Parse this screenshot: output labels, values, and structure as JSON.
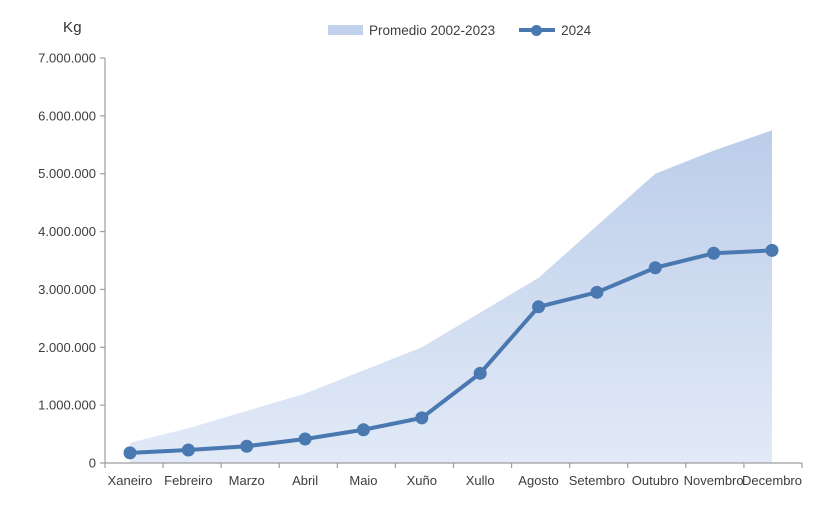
{
  "chart": {
    "background": "#ffffff",
    "axis_color": "#9d9d9d",
    "text_color": "#3d3d3d"
  },
  "chart_data": {
    "type": "area",
    "subtype": "area series with overlaid line+markers, cumulative by month",
    "title": "",
    "ylabel": "Kg",
    "xlabel": "",
    "grid": false,
    "legend_position": "top-center",
    "ylim": [
      0,
      7000000
    ],
    "yticks": [
      0,
      1000000,
      2000000,
      3000000,
      4000000,
      5000000,
      6000000,
      7000000
    ],
    "ytick_labels": [
      "0",
      "1.000.000",
      "2.000.000",
      "3.000.000",
      "4.000.000",
      "5.000.000",
      "6.000.000",
      "7.000.000"
    ],
    "categories": [
      "Xaneiro",
      "Febreiro",
      "Marzo",
      "Abril",
      "Maio",
      "Xuño",
      "Xullo",
      "Agosto",
      "Setembro",
      "Outubro",
      "Novembro",
      "Decembro"
    ],
    "series": [
      {
        "name": "Promedio 2002-2023",
        "type": "area",
        "legend_color": "#c3d2ec",
        "color_top": "#bccdea",
        "color_bottom": "#e2eaf7",
        "values": [
          350000,
          600000,
          900000,
          1200000,
          1600000,
          2000000,
          2600000,
          3200000,
          4100000,
          5000000,
          5400000,
          5750000
        ]
      },
      {
        "name": "2024",
        "type": "line",
        "color": "#4a78b0",
        "marker": "circle",
        "values": [
          175000,
          225000,
          290000,
          415000,
          575000,
          780000,
          1550000,
          2700000,
          2950000,
          3375000,
          3625000,
          3675000
        ]
      }
    ]
  }
}
